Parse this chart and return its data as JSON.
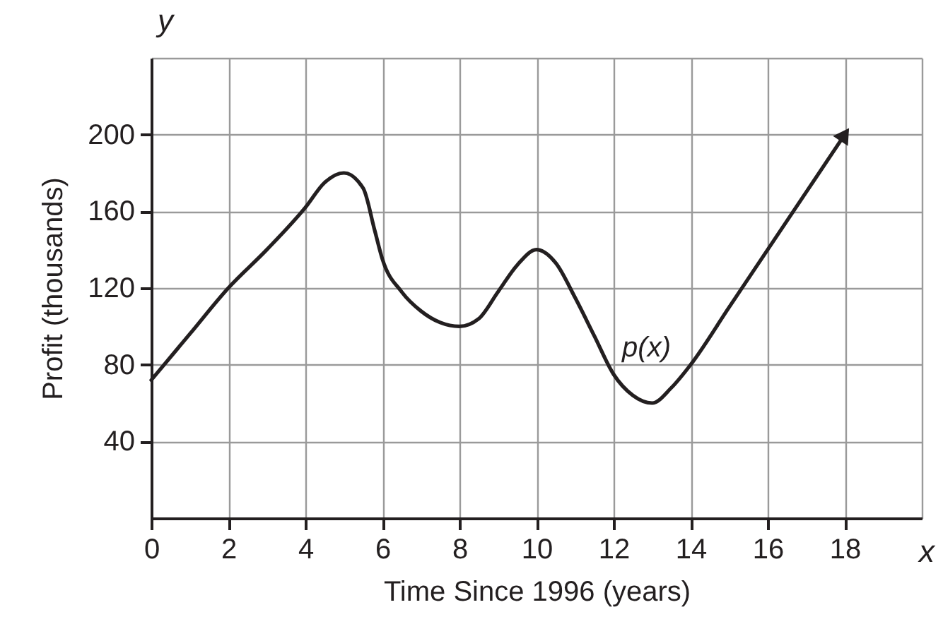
{
  "chart_data": {
    "type": "line",
    "xlabel": "Time Since 1996 (years)",
    "ylabel": "Profit (thousands)",
    "annotations": [
      "x",
      "y"
    ],
    "x": [
      0,
      1,
      2,
      3,
      4,
      4.5,
      5,
      5.5,
      5.8,
      6,
      6.5,
      7,
      7.5,
      8,
      8.5,
      9,
      9.5,
      10,
      10.5,
      11,
      11.5,
      12,
      12.5,
      13,
      13.5,
      14,
      15,
      16,
      17,
      18
    ],
    "series": [
      {
        "name": "p(x)",
        "color": "#231f20",
        "values": [
          72,
          96,
          120,
          140,
          162,
          175,
          180,
          172,
          150,
          135,
          118,
          108,
          102,
          100,
          104,
          118,
          132,
          140,
          133,
          115,
          95,
          75,
          64,
          60,
          68,
          80,
          110,
          140,
          170,
          200
        ]
      }
    ],
    "xlim": [
      0,
      20
    ],
    "ylim": [
      0,
      240
    ],
    "xticks": [
      0,
      2,
      4,
      6,
      8,
      10,
      12,
      14,
      16,
      18
    ],
    "yticks": [
      40,
      80,
      120,
      160,
      200
    ],
    "grid": true,
    "marker": "none",
    "line_style": "solid"
  }
}
